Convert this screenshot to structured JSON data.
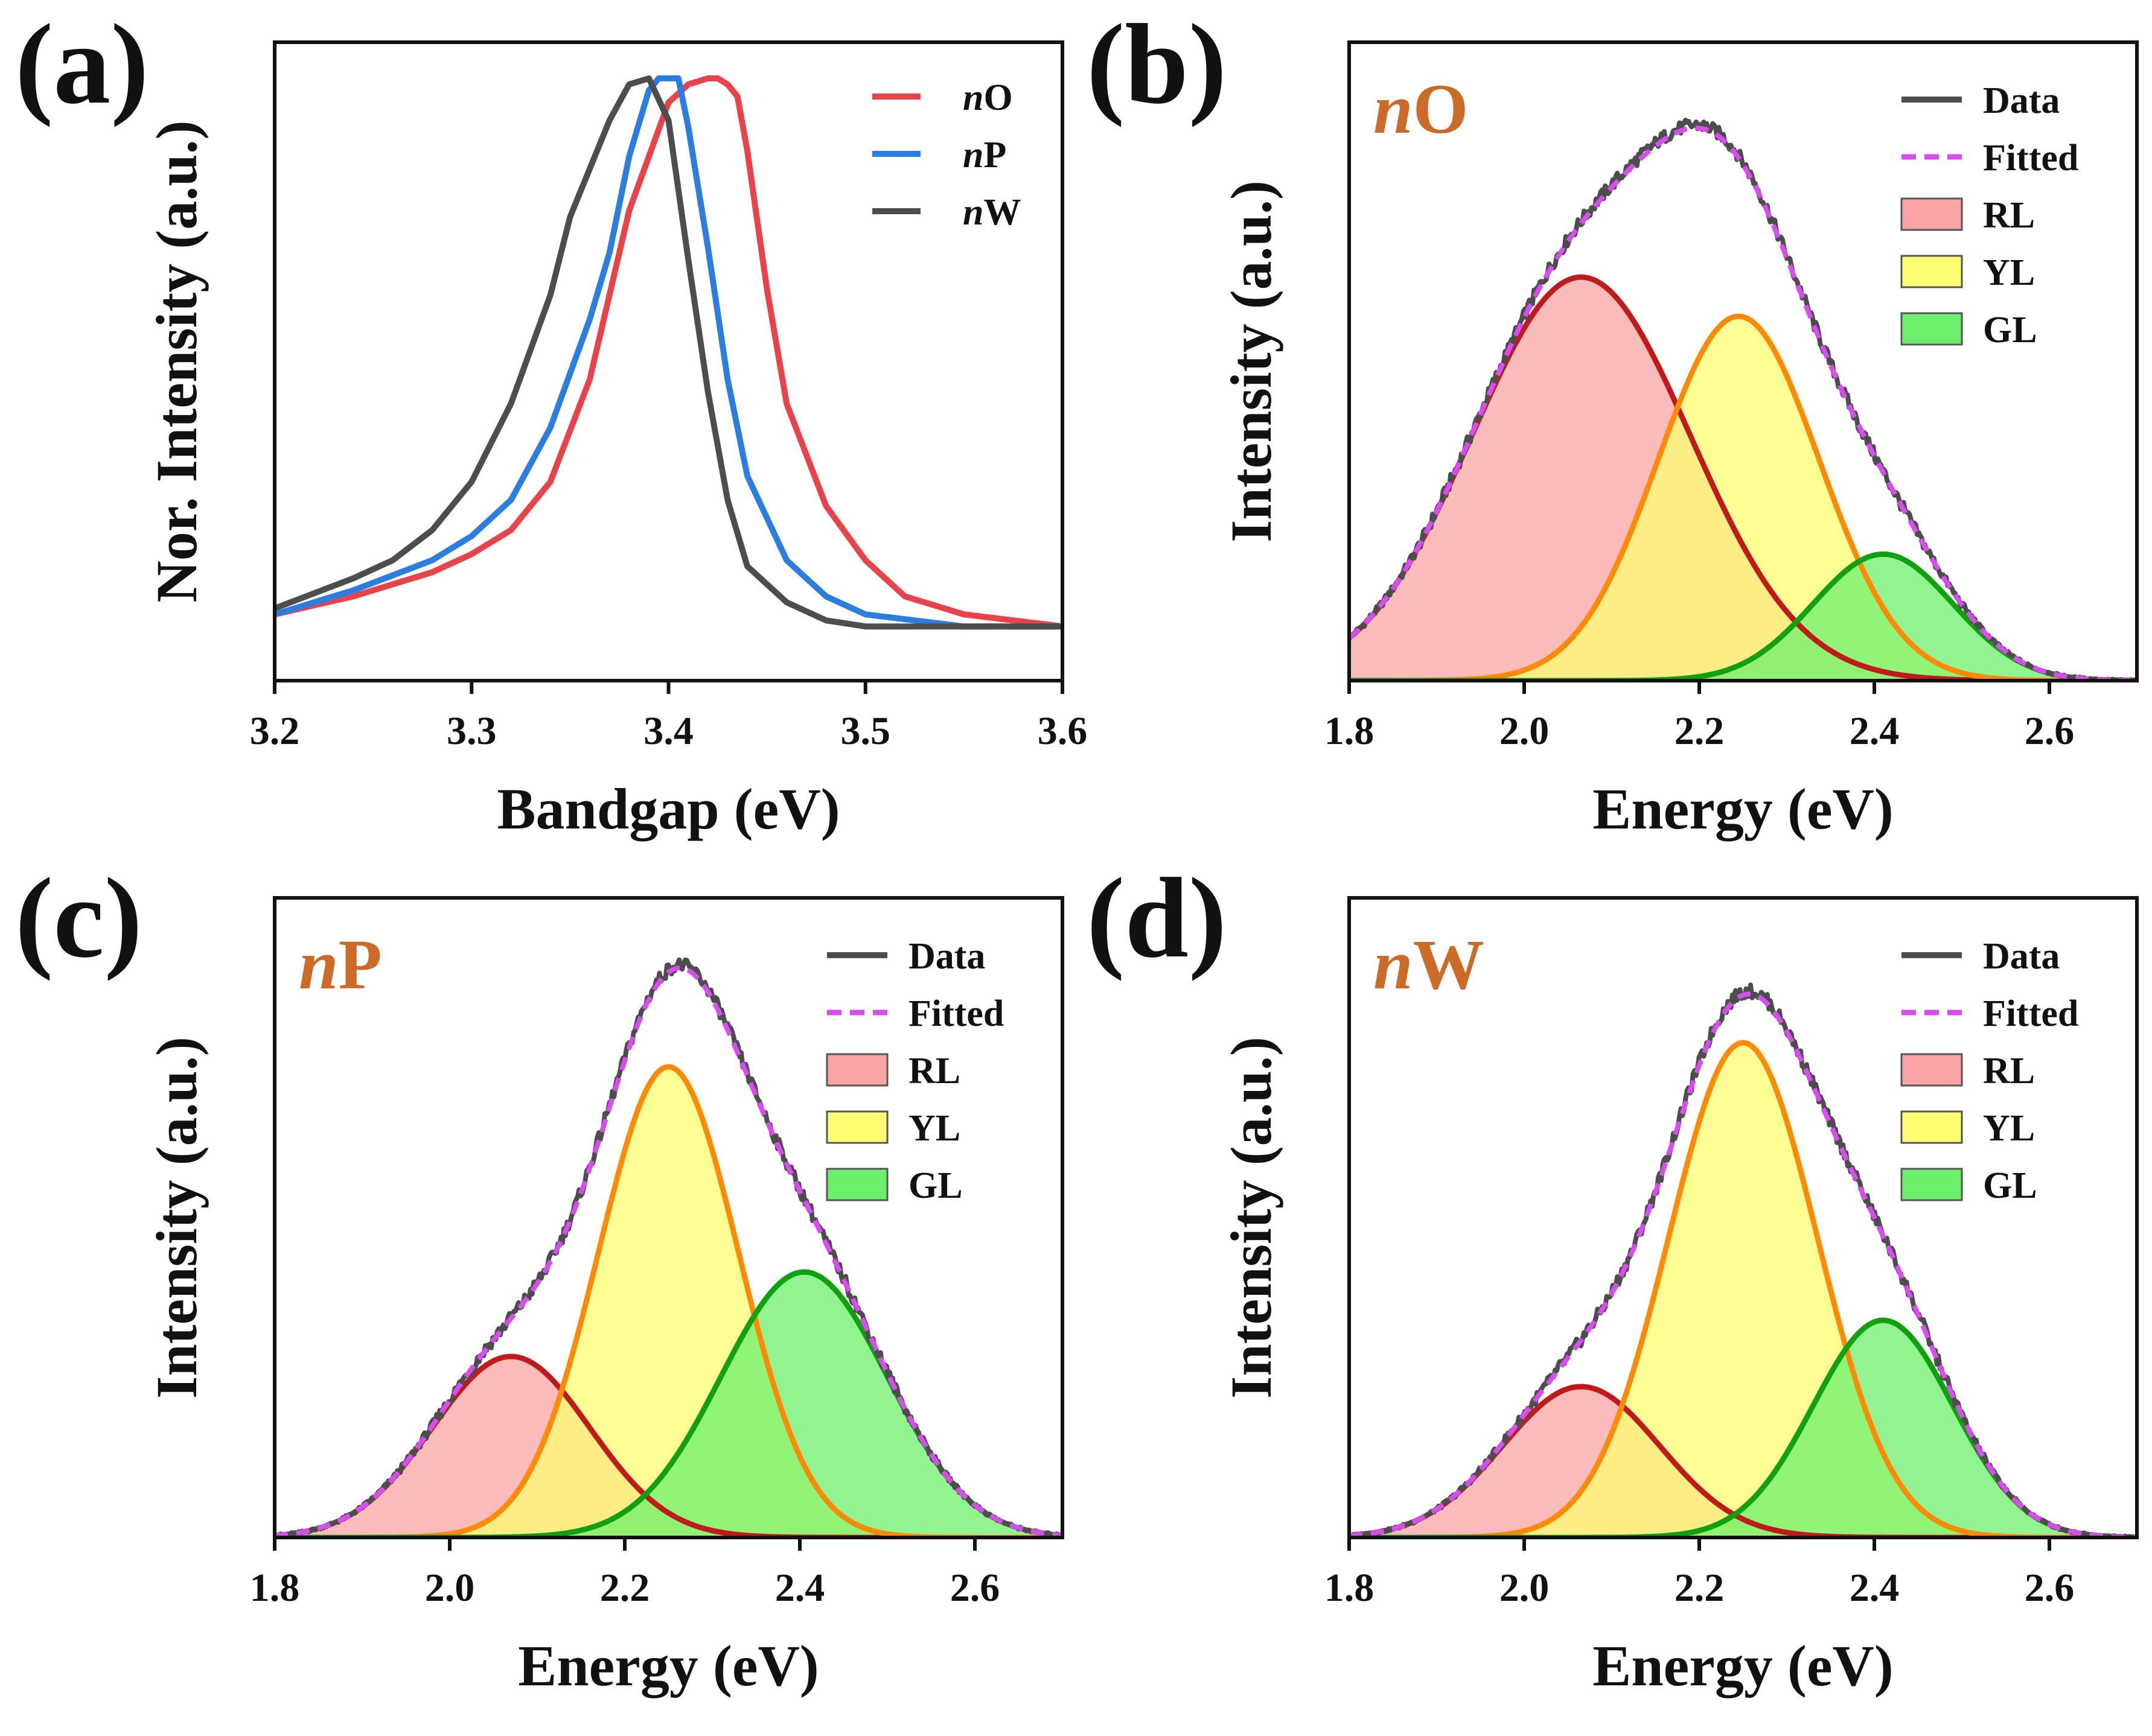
{
  "chart_data": [
    {
      "type": "line",
      "panel_label": "(a)",
      "xlabel": "Bandgap (eV)",
      "ylabel": "Nor. Intensity (a.u.)",
      "xlim": [
        3.2,
        3.6
      ],
      "ylim": [
        0,
        1.06
      ],
      "xticks": [
        "3.2",
        "3.3",
        "3.4",
        "3.5",
        "3.6"
      ],
      "legend_position": "top-right",
      "series": [
        {
          "name": "nO",
          "name_italic": "n",
          "name_rest": "O",
          "color": "#e8434a",
          "x": [
            3.2,
            3.24,
            3.28,
            3.3,
            3.32,
            3.34,
            3.36,
            3.38,
            3.4,
            3.41,
            3.42,
            3.425,
            3.43,
            3.435,
            3.44,
            3.45,
            3.46,
            3.48,
            3.5,
            3.52,
            3.55,
            3.6
          ],
          "y": [
            0.11,
            0.14,
            0.18,
            0.21,
            0.25,
            0.33,
            0.5,
            0.78,
            0.96,
            0.99,
            1.0,
            1.0,
            0.99,
            0.97,
            0.88,
            0.65,
            0.46,
            0.29,
            0.2,
            0.14,
            0.11,
            0.09
          ]
        },
        {
          "name": "nP",
          "name_italic": "n",
          "name_rest": "P",
          "color": "#2b7de0",
          "x": [
            3.2,
            3.24,
            3.28,
            3.3,
            3.32,
            3.34,
            3.36,
            3.37,
            3.38,
            3.39,
            3.395,
            3.4,
            3.405,
            3.41,
            3.42,
            3.43,
            3.44,
            3.46,
            3.48,
            3.5,
            3.55,
            3.6
          ],
          "y": [
            0.11,
            0.15,
            0.2,
            0.24,
            0.3,
            0.42,
            0.6,
            0.71,
            0.87,
            0.98,
            1.0,
            1.0,
            1.0,
            0.92,
            0.72,
            0.5,
            0.34,
            0.2,
            0.14,
            0.11,
            0.09,
            0.09
          ]
        },
        {
          "name": "nW",
          "name_italic": "n",
          "name_rest": "W",
          "color": "#4d4d4d",
          "x": [
            3.2,
            3.24,
            3.26,
            3.28,
            3.3,
            3.32,
            3.34,
            3.35,
            3.36,
            3.37,
            3.38,
            3.39,
            3.4,
            3.41,
            3.42,
            3.43,
            3.44,
            3.46,
            3.48,
            3.5,
            3.55,
            3.6
          ],
          "y": [
            0.12,
            0.17,
            0.2,
            0.25,
            0.33,
            0.46,
            0.64,
            0.77,
            0.85,
            0.93,
            0.99,
            1.0,
            0.93,
            0.7,
            0.48,
            0.3,
            0.19,
            0.13,
            0.1,
            0.09,
            0.09,
            0.09
          ]
        }
      ]
    },
    {
      "type": "area",
      "panel_label": "(b)",
      "sample_italic": "n",
      "sample_rest": "O",
      "xlabel": "Energy (eV)",
      "ylabel": "Intensity (a.u.)",
      "xlim": [
        1.8,
        2.7
      ],
      "ylim": [
        0,
        1.06
      ],
      "xticks": [
        "1.8",
        "2.0",
        "2.2",
        "2.4",
        "2.6"
      ],
      "legend_position": "top-right",
      "legend": [
        "Data",
        "Fitted",
        "RL",
        "YL",
        "GL"
      ],
      "components": [
        {
          "name": "RL",
          "center": 2.065,
          "amplitude": 0.67,
          "sigma": 0.125,
          "fill": "#f9a4a4",
          "line": "#c01b1b"
        },
        {
          "name": "YL",
          "center": 2.245,
          "amplitude": 0.605,
          "sigma": 0.092,
          "fill": "#fefe72",
          "line": "#ff8a05"
        },
        {
          "name": "GL",
          "center": 2.41,
          "amplitude": 0.21,
          "sigma": 0.08,
          "fill": "#6cf06c",
          "line": "#10a010"
        }
      ],
      "data_color": "#4d4d4d",
      "fitted_color": "#d84cf0"
    },
    {
      "type": "area",
      "panel_label": "(c)",
      "sample_italic": "n",
      "sample_rest": "P",
      "xlabel": "Energy (eV)",
      "ylabel": "Intensity (a.u.)",
      "xlim": [
        1.8,
        2.7
      ],
      "ylim": [
        0,
        1.06
      ],
      "xticks": [
        "1.8",
        "2.0",
        "2.2",
        "2.4",
        "2.6"
      ],
      "legend_position": "top-right",
      "legend": [
        "Data",
        "Fitted",
        "RL",
        "YL",
        "GL"
      ],
      "components": [
        {
          "name": "RL",
          "center": 2.07,
          "amplitude": 0.3,
          "sigma": 0.09,
          "fill": "#f9a4a4",
          "line": "#c01b1b"
        },
        {
          "name": "YL",
          "center": 2.25,
          "amplitude": 0.78,
          "sigma": 0.08,
          "fill": "#fefe72",
          "line": "#ff8a05"
        },
        {
          "name": "GL",
          "center": 2.405,
          "amplitude": 0.44,
          "sigma": 0.095,
          "fill": "#6cf06c",
          "line": "#10a010"
        }
      ],
      "data_color": "#4d4d4d",
      "fitted_color": "#d84cf0"
    },
    {
      "type": "area",
      "panel_label": "(d)",
      "sample_italic": "n",
      "sample_rest": "W",
      "xlabel": "Energy (eV)",
      "ylabel": "Intensity (a.u.)",
      "xlim": [
        1.8,
        2.7
      ],
      "ylim": [
        0,
        1.06
      ],
      "xticks": [
        "1.8",
        "2.0",
        "2.2",
        "2.4",
        "2.6"
      ],
      "legend_position": "top-right",
      "legend": [
        "Data",
        "Fitted",
        "RL",
        "YL",
        "GL"
      ],
      "components": [
        {
          "name": "RL",
          "center": 2.065,
          "amplitude": 0.25,
          "sigma": 0.09,
          "fill": "#f9a4a4",
          "line": "#c01b1b"
        },
        {
          "name": "YL",
          "center": 2.25,
          "amplitude": 0.82,
          "sigma": 0.085,
          "fill": "#fefe72",
          "line": "#ff8a05"
        },
        {
          "name": "GL",
          "center": 2.41,
          "amplitude": 0.36,
          "sigma": 0.08,
          "fill": "#6cf06c",
          "line": "#10a010"
        }
      ],
      "data_color": "#4d4d4d",
      "fitted_color": "#d84cf0"
    }
  ]
}
